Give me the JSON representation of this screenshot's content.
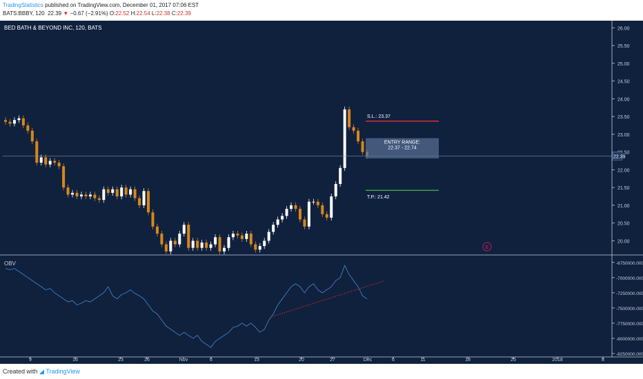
{
  "header": {
    "publisher": "TradingStatistics",
    "published_text": "published on TradingView.com, December 01, 2017 07:06 EST",
    "symbol": "BATS:BBBY, 120",
    "last": "22.39",
    "change_arrow": "▼",
    "change": "−0.67 (−2.91%)",
    "o_label": "O:",
    "o_value": "22.52",
    "h_label": "H:",
    "h_value": "22.54",
    "l_label": "L:",
    "l_value": "22.38",
    "c_label": "C:",
    "c_value": "22.39"
  },
  "footer": {
    "created_with": "Created with",
    "brand": "TradingView"
  },
  "colors": {
    "background": "#10213e",
    "up": "#ffffff",
    "down": "#d8871a",
    "stop_loss": "#d32f2f",
    "take_profit": "#43a047",
    "obv_line": "#3f7fbf",
    "trend": "#c62828"
  },
  "chart_data": [
    {
      "type": "candlestick",
      "title": "BED BATH & BEYOND INC, 120, BATS",
      "ylim": [
        19.6,
        26.2
      ],
      "y_ticks": [
        "26.00",
        "25.50",
        "25.00",
        "24.50",
        "24.00",
        "23.50",
        "23.00",
        "22.50",
        "22.00",
        "21.50",
        "21.00",
        "20.50",
        "20.00"
      ],
      "x_ticks": [
        "9",
        "16",
        "23",
        "26",
        "Nov",
        "6",
        "13",
        "20",
        "27",
        "Dec",
        "6",
        "11",
        "18",
        "25",
        "2018",
        "8"
      ],
      "last_price_label": "22.39",
      "annotations": [
        {
          "type": "stop_loss",
          "label": "S.L.: 23.37",
          "value": 23.37
        },
        {
          "type": "entry_range",
          "label": "ENTRY RANGE:",
          "sublabel": "22.37 - 22.74",
          "low": 22.37,
          "high": 22.74
        },
        {
          "type": "take_profit",
          "label": "T.P.: 21.42",
          "value": 21.42
        },
        {
          "type": "earnings_marker",
          "label": "E"
        }
      ],
      "closes": [
        23.35,
        23.3,
        23.4,
        23.45,
        23.25,
        23.1,
        22.8,
        22.2,
        22.35,
        22.15,
        22.25,
        22.2,
        22.1,
        21.5,
        21.3,
        21.35,
        21.25,
        21.3,
        21.25,
        21.3,
        21.2,
        21.15,
        21.45,
        21.35,
        21.45,
        21.25,
        21.5,
        21.3,
        21.45,
        21.2,
        21.0,
        21.4,
        20.8,
        20.4,
        20.2,
        19.9,
        19.7,
        20.0,
        19.9,
        20.2,
        20.45,
        19.8,
        20.0,
        19.8,
        19.95,
        19.8,
        19.9,
        20.1,
        19.7,
        19.8,
        20.1,
        20.2,
        20.15,
        20.05,
        20.2,
        19.9,
        19.75,
        19.85,
        20.0,
        20.25,
        20.45,
        20.6,
        20.7,
        20.9,
        21.0,
        20.9,
        20.6,
        20.4,
        21.1,
        21.1,
        21.0,
        20.75,
        20.65,
        21.25,
        21.6,
        22.05,
        23.7,
        23.2,
        23.1,
        22.8,
        22.5,
        22.39
      ],
      "obv_ylim": [
        -8250000,
        -6650000
      ],
      "obv_ticks": [
        "-6750000.0000",
        "-7000000.0000",
        "-7250000.0000",
        "-7500000.0000",
        "-7750000.0000",
        "-8000000.0000",
        "-8250000.0000"
      ],
      "obv_label": "OBV",
      "obv": [
        -6850000,
        -6870000,
        -6850000,
        -6900000,
        -6950000,
        -7000000,
        -7050000,
        -7100000,
        -7150000,
        -7200000,
        -7180000,
        -7250000,
        -7300000,
        -7350000,
        -7400000,
        -7380000,
        -7450000,
        -7420000,
        -7380000,
        -7400000,
        -7350000,
        -7300000,
        -7250000,
        -7150000,
        -7300000,
        -7350000,
        -7280000,
        -7250000,
        -7200000,
        -7260000,
        -7300000,
        -7350000,
        -7450000,
        -7550000,
        -7600000,
        -7700000,
        -7800000,
        -7850000,
        -7900000,
        -7950000,
        -7900000,
        -7950000,
        -8000000,
        -7950000,
        -8050000,
        -8100000,
        -8150000,
        -8050000,
        -8000000,
        -7950000,
        -7900000,
        -7820000,
        -7800000,
        -7750000,
        -7800000,
        -7750000,
        -7820000,
        -7900000,
        -7850000,
        -7700000,
        -7600000,
        -7450000,
        -7350000,
        -7250000,
        -7150000,
        -7100000,
        -7150000,
        -7250000,
        -7150000,
        -7100000,
        -7200000,
        -7250000,
        -7200000,
        -7150000,
        -7050000,
        -7000000,
        -6800000,
        -6950000,
        -7050000,
        -7150000,
        -7300000,
        -7350000
      ]
    }
  ]
}
